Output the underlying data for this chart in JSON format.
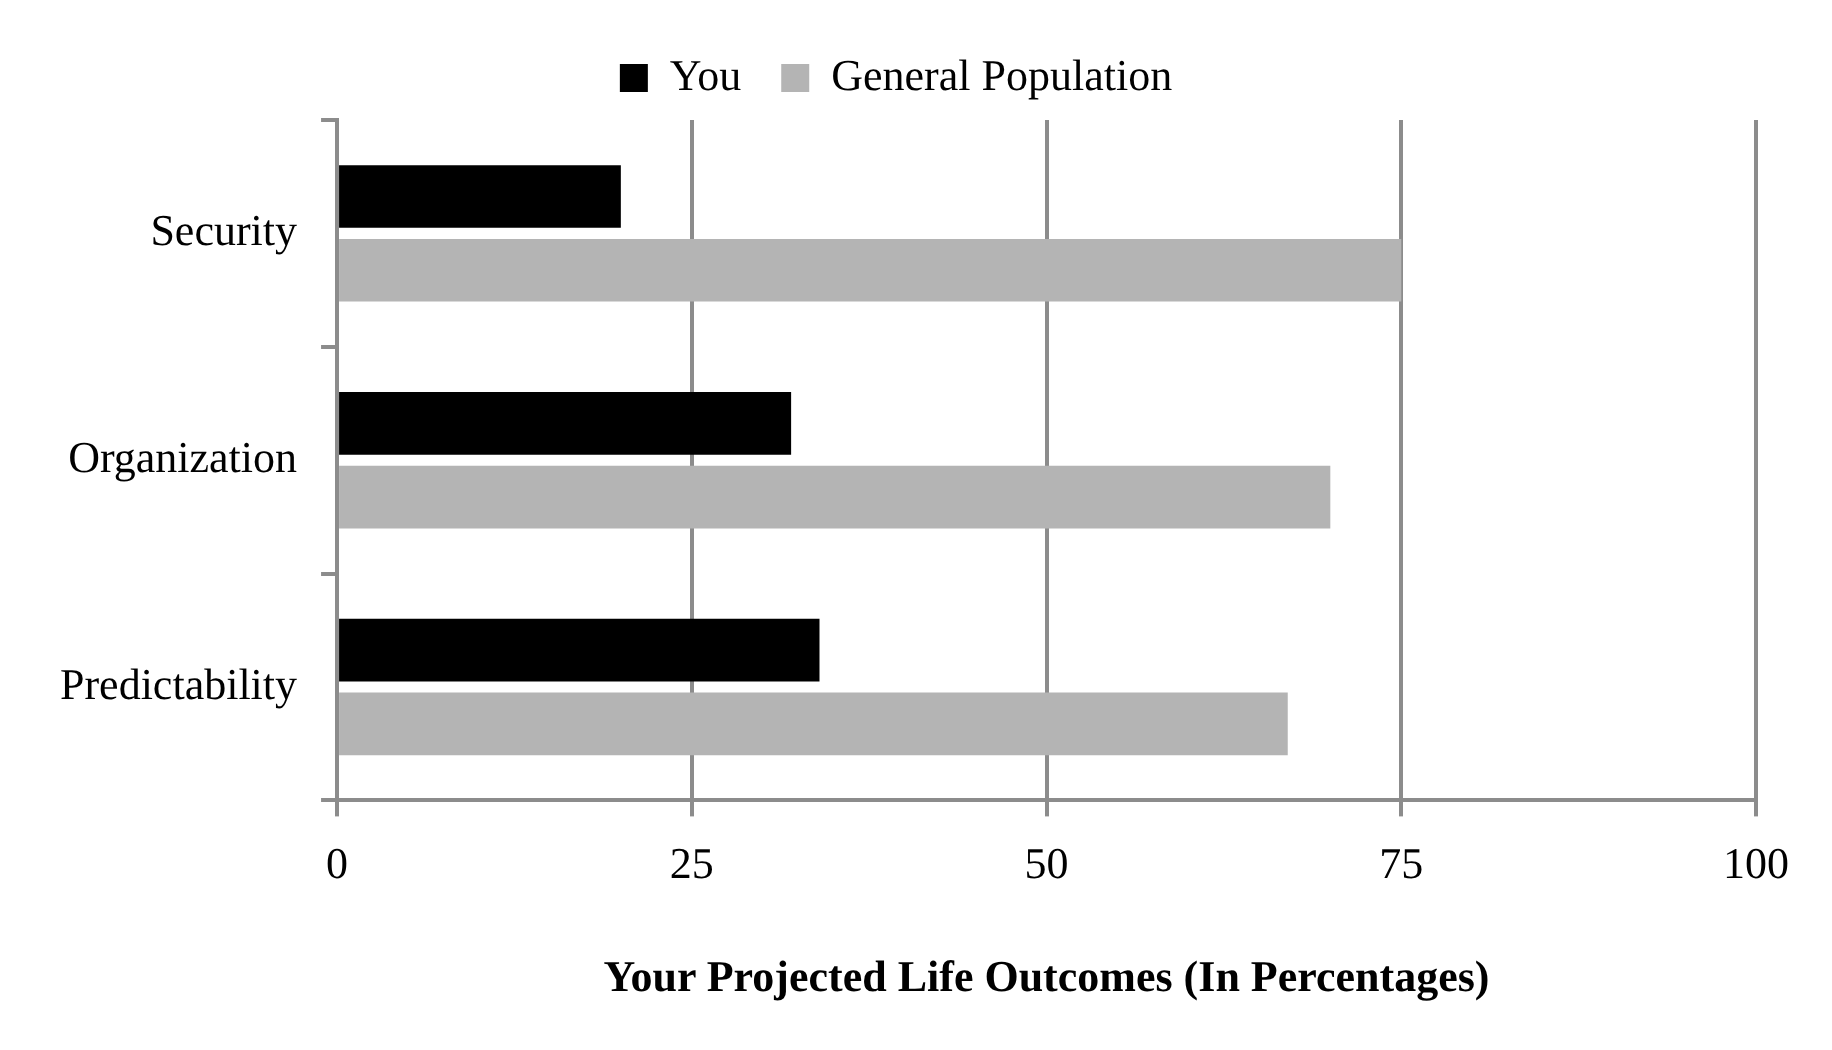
{
  "chart_data": {
    "type": "bar",
    "orientation": "horizontal",
    "xlabel": "Your Projected Life Outcomes (In Percentages)",
    "categories": [
      "Security",
      "Organization",
      "Predictability"
    ],
    "series": [
      {
        "name": "You",
        "color": "#000000",
        "values": [
          20,
          32,
          34
        ]
      },
      {
        "name": "General Population",
        "color": "#b4b4b4",
        "values": [
          75,
          70,
          67
        ]
      }
    ],
    "xlim": [
      0,
      100
    ],
    "xticks": [
      0,
      25,
      50,
      75,
      100
    ],
    "grid": "x",
    "legend": "top"
  }
}
